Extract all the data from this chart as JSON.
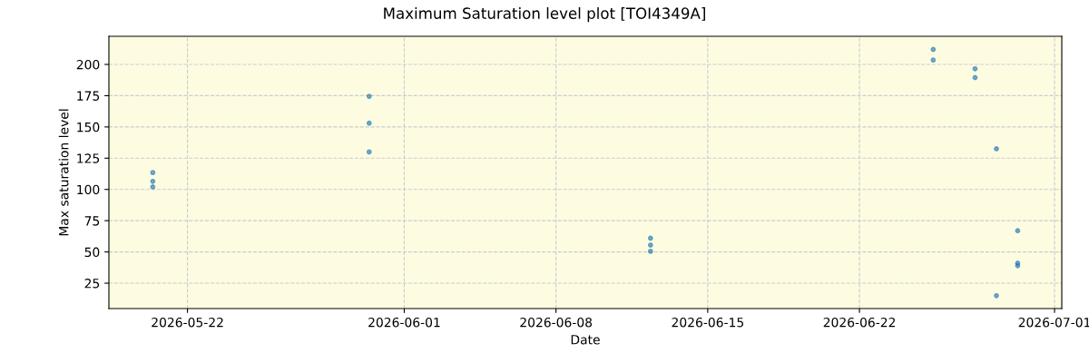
{
  "chart_data": {
    "type": "scatter",
    "title": "Maximum Saturation level plot [TOI4349A]",
    "xlabel": "Date",
    "ylabel": "Max saturation level",
    "series": [
      {
        "color": "#1f77b4",
        "x": [
          "2026-05-20T09:36",
          "2026-05-20T09:36",
          "2026-05-20T09:36",
          "2026-05-30T09:10",
          "2026-05-30T09:10",
          "2026-05-30T09:10",
          "2026-06-12T08:40",
          "2026-06-12T08:40",
          "2026-06-12T08:40",
          "2026-06-25T09:40",
          "2026-06-25T09:40",
          "2026-06-27T08:00",
          "2026-06-27T08:00",
          "2026-06-28T07:40",
          "2026-06-28T07:40",
          "2026-06-29T07:10",
          "2026-06-29T07:10",
          "2026-06-29T07:10"
        ],
        "values": [
          113.5,
          106.5,
          102,
          174.5,
          153,
          130,
          61,
          55.5,
          50.5,
          212,
          203.5,
          196.5,
          189.5,
          132.5,
          15,
          67,
          41,
          39
        ]
      }
    ],
    "xlim": [
      "2026-05-18T09:00",
      "2026-07-01T08:00"
    ],
    "xticks": [
      "2026-05-22",
      "2026-06-01",
      "2026-06-08",
      "2026-06-15",
      "2026-06-22",
      "2026-07-01"
    ],
    "ylim": [
      4.7,
      222.5
    ],
    "yticks": [
      25,
      50,
      75,
      100,
      125,
      150,
      175,
      200
    ],
    "grid": true,
    "marker": "circle"
  }
}
